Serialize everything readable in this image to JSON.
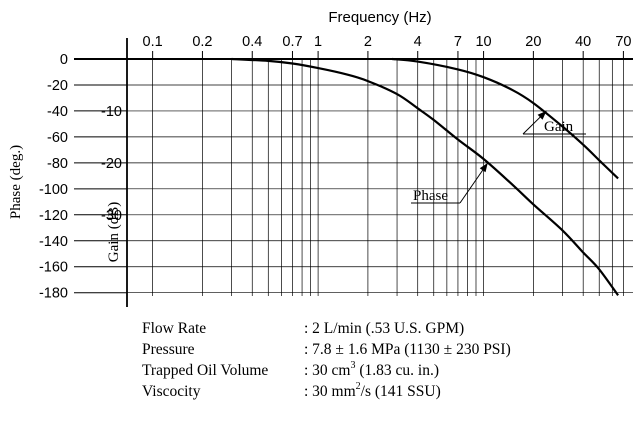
{
  "chart_data": {
    "type": "line",
    "x_scale": "log",
    "grid": true,
    "xlabel": "Frequency (Hz)",
    "x_ticks": [
      "0.1",
      "0.2",
      "0.4",
      "0.7",
      "1",
      "2",
      "4",
      "7",
      "10",
      "20",
      "40",
      "70"
    ],
    "y_left": {
      "label": "Phase (deg.)",
      "ticks": [
        "0",
        "-20",
        "-40",
        "-60",
        "-80",
        "-100",
        "-120",
        "-140",
        "-160",
        "-180"
      ],
      "range": [
        -190,
        0
      ]
    },
    "y_inner": {
      "label": "Gain (dB)",
      "ticks": [
        "-10",
        "-20",
        "-30"
      ],
      "range": [
        -47.5,
        0
      ]
    },
    "series": [
      {
        "name": "Gain",
        "axis": "gain_db",
        "points": [
          [
            2.8,
            0
          ],
          [
            4,
            -0.5
          ],
          [
            7,
            -2
          ],
          [
            10,
            -3.5
          ],
          [
            15,
            -6
          ],
          [
            20,
            -8.5
          ],
          [
            30,
            -13
          ],
          [
            40,
            -16.5
          ],
          [
            50,
            -19.5
          ],
          [
            65,
            -23
          ]
        ]
      },
      {
        "name": "Phase",
        "axis": "phase_deg",
        "points": [
          [
            0.3,
            0
          ],
          [
            0.5,
            -1.5
          ],
          [
            0.7,
            -3.5
          ],
          [
            1,
            -7
          ],
          [
            1.5,
            -12
          ],
          [
            2,
            -17
          ],
          [
            3,
            -27
          ],
          [
            4,
            -38
          ],
          [
            5,
            -47
          ],
          [
            7,
            -62
          ],
          [
            10,
            -77
          ],
          [
            15,
            -97
          ],
          [
            20,
            -112
          ],
          [
            30,
            -132
          ],
          [
            40,
            -149
          ],
          [
            50,
            -162
          ],
          [
            65,
            -182
          ]
        ]
      }
    ],
    "annotations": [
      "Gain",
      "Phase"
    ]
  },
  "conditions": [
    {
      "label": "Flow Rate",
      "value": ": 2 L/min (.53 U.S. GPM)"
    },
    {
      "label": "Pressure",
      "value": ": 7.8 ± 1.6 MPa (1130 ± 230 PSI)"
    },
    {
      "label": "Trapped Oil Volume",
      "value_prefix": ": 30 cm",
      "sup": "3",
      "value_suffix": " (1.83 cu. in.)"
    },
    {
      "label": "Viscocity",
      "value_prefix": ": 30 mm",
      "sup": "2",
      "value_suffix": "/s (141 SSU)"
    }
  ]
}
